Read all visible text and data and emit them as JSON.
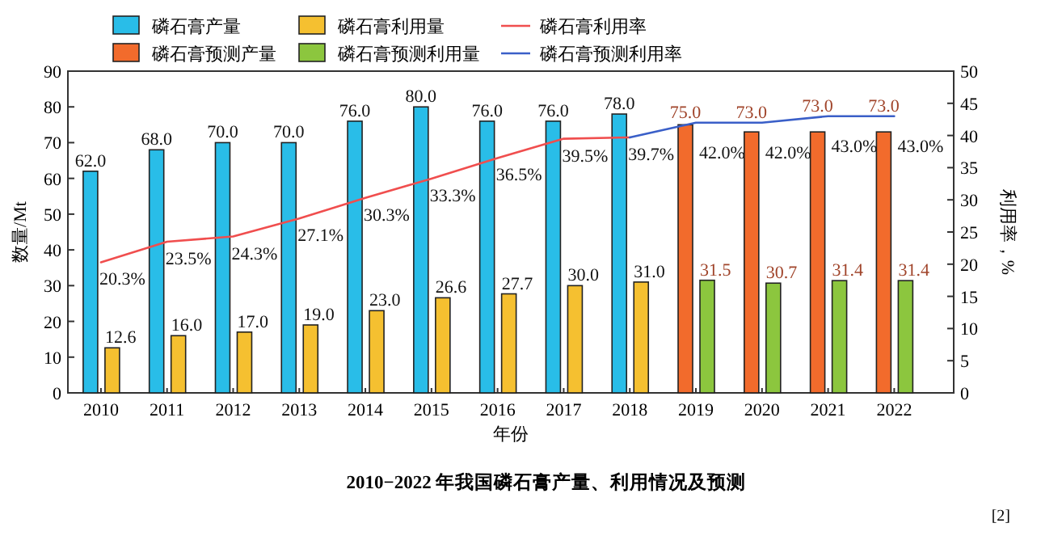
{
  "chart_data": {
    "type": "bar",
    "categories": [
      "2010",
      "2011",
      "2012",
      "2013",
      "2014",
      "2015",
      "2016",
      "2017",
      "2018",
      "2019",
      "2020",
      "2021",
      "2022"
    ],
    "series": [
      {
        "name": "磷石膏产量",
        "color": "#29bde8",
        "values": [
          62.0,
          68.0,
          70.0,
          70.0,
          76.0,
          80.0,
          76.0,
          76.0,
          78.0,
          null,
          null,
          null,
          null
        ],
        "value_labels": [
          "62.0",
          "68.0",
          "70.0",
          "70.0",
          "76.0",
          "80.0",
          "76.0",
          "76.0",
          "78.0",
          null,
          null,
          null,
          null
        ]
      },
      {
        "name": "磷石膏预测产量",
        "color": "#f26b2c",
        "values": [
          null,
          null,
          null,
          null,
          null,
          null,
          null,
          null,
          null,
          75.0,
          73.0,
          73.0,
          73.0
        ],
        "value_labels": [
          null,
          null,
          null,
          null,
          null,
          null,
          null,
          null,
          null,
          "75.0",
          "73.0",
          "73.0",
          "73.0"
        ]
      },
      {
        "name": "磷石膏利用量",
        "color": "#f5c030",
        "values": [
          12.6,
          16.0,
          17.0,
          19.0,
          23.0,
          26.6,
          27.7,
          30.0,
          31.0,
          null,
          null,
          null,
          null
        ],
        "value_labels": [
          "12.6",
          "16.0",
          "17.0",
          "19.0",
          "23.0",
          "26.6",
          "27.7",
          "30.0",
          "31.0",
          null,
          null,
          null,
          null
        ]
      },
      {
        "name": "磷石膏预测利用量",
        "color": "#8cc63e",
        "values": [
          null,
          null,
          null,
          null,
          null,
          null,
          null,
          null,
          null,
          31.5,
          30.7,
          31.4,
          31.4
        ],
        "value_labels": [
          null,
          null,
          null,
          null,
          null,
          null,
          null,
          null,
          null,
          "31.5",
          "30.7",
          "31.4",
          "31.4"
        ]
      },
      {
        "name": "磷石膏利用率",
        "type": "line",
        "axis": "y2",
        "color": "#f04e4e",
        "values": [
          20.3,
          23.5,
          24.3,
          27.1,
          30.3,
          33.3,
          36.5,
          39.5,
          39.7,
          null,
          null,
          null,
          null
        ],
        "value_labels": [
          "20.3%",
          "23.5%",
          "24.3%",
          "27.1%",
          "30.3%",
          "33.3%",
          "36.5%",
          "39.5%",
          "39.7%",
          null,
          null,
          null,
          null
        ]
      },
      {
        "name": "磷石膏预测利用率",
        "type": "line",
        "axis": "y2",
        "color": "#3a5fc8",
        "values": [
          null,
          null,
          null,
          null,
          null,
          null,
          null,
          null,
          39.7,
          42.0,
          42.0,
          43.0,
          43.0
        ],
        "value_labels": [
          null,
          null,
          null,
          null,
          null,
          null,
          null,
          null,
          null,
          "42.0%",
          "42.0%",
          "43.0%",
          "43.0%"
        ]
      }
    ],
    "xlabel": "年份",
    "ylabel": "数量/Mt",
    "y2label": "利用率，%",
    "ylim": [
      0,
      90
    ],
    "yticks": [
      0,
      10,
      20,
      30,
      40,
      50,
      60,
      70,
      80,
      90
    ],
    "y2lim": [
      0,
      50
    ],
    "y2ticks": [
      0,
      5,
      10,
      15,
      20,
      25,
      30,
      35,
      40,
      45,
      50
    ],
    "legend": "top",
    "grid": false,
    "marker": "none",
    "line_style": "solid",
    "annotations": [
      "2010−2022 年我国磷石膏产量、利用情况及预测",
      "[2]"
    ]
  }
}
